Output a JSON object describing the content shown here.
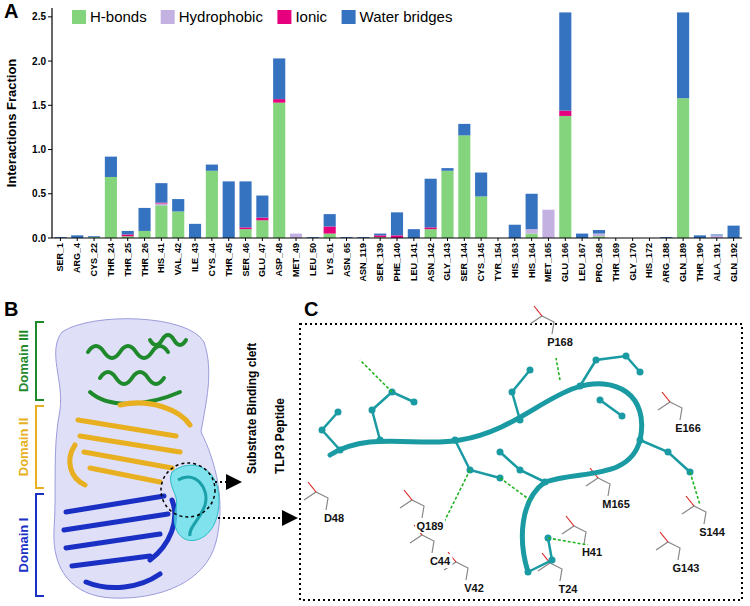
{
  "chart_data": {
    "type": "bar",
    "stacked": true,
    "grid": false,
    "legend": "upper left",
    "y_label": "Interactions Fraction",
    "categories": [
      "SER_1",
      "ARG_4",
      "CYS_22",
      "THR_24",
      "THR_25",
      "THR_26",
      "HIS_41",
      "VAL_42",
      "ILE_43",
      "CYS_44",
      "THR_45",
      "SER_46",
      "GLU_47",
      "ASP_48",
      "MET_49",
      "LEU_50",
      "LYS_61",
      "ASN_65",
      "ASN_119",
      "SER_139",
      "PHE_140",
      "LEU_141",
      "ASN_142",
      "GLY_143",
      "SER_144",
      "CYS_145",
      "TYR_154",
      "HIS_163",
      "HIS_164",
      "MET_165",
      "GLU_166",
      "LEU_167",
      "PRO_168",
      "THR_169",
      "GLY_170",
      "HIS_172",
      "ARG_188",
      "GLN_189",
      "THR_190",
      "ALA_191",
      "GLN_192"
    ],
    "series": [
      {
        "name": "H-bonds",
        "color": "#84d47e",
        "values": [
          0,
          0,
          0.01,
          0.69,
          0.02,
          0.08,
          0.37,
          0.3,
          0,
          0.76,
          0,
          0.1,
          0.2,
          1.53,
          0,
          0,
          0.05,
          0,
          0,
          0.01,
          0,
          0,
          0.1,
          0.76,
          1.16,
          0.47,
          0,
          0,
          0.05,
          0,
          1.38,
          0,
          0.02,
          0,
          0,
          0,
          0,
          1.58,
          0,
          0,
          0
        ]
      },
      {
        "name": "Hydrophobic",
        "color": "#c3b1e1",
        "values": [
          0,
          0,
          0,
          0,
          0,
          0,
          0.02,
          0,
          0,
          0,
          0,
          0,
          0,
          0,
          0.05,
          0,
          0,
          0,
          0,
          0,
          0,
          0,
          0,
          0,
          0,
          0,
          0,
          0,
          0.05,
          0.32,
          0,
          0,
          0.03,
          0,
          0,
          0,
          0,
          0,
          0,
          0.03,
          0
        ]
      },
      {
        "name": "Ionic",
        "color": "#e6007e",
        "values": [
          0,
          0,
          0,
          0,
          0.02,
          0,
          0.01,
          0,
          0,
          0,
          0,
          0.02,
          0.03,
          0.04,
          0,
          0,
          0.08,
          0,
          0,
          0.02,
          0.03,
          0,
          0.02,
          0,
          0,
          0,
          0,
          0,
          0,
          0,
          0.06,
          0,
          0,
          0,
          0,
          0,
          0,
          0,
          0,
          0,
          0
        ]
      },
      {
        "name": "Water bridges",
        "color": "#3572c0",
        "values": [
          0.01,
          0.03,
          0.01,
          0.23,
          0.04,
          0.26,
          0.22,
          0.14,
          0.16,
          0.07,
          0.64,
          0.52,
          0.25,
          0.46,
          0,
          0.01,
          0.14,
          0.01,
          0.01,
          0.02,
          0.26,
          0.1,
          0.55,
          0.03,
          0.13,
          0.27,
          0,
          0.15,
          0.4,
          0,
          1.11,
          0.05,
          0.04,
          0,
          0,
          0,
          0.01,
          0.97,
          0.03,
          0.01,
          0.14
        ]
      }
    ],
    "ylim": [
      0,
      2.6
    ],
    "yticks": [
      {
        "value": 0,
        "label": "0.0"
      },
      0.5,
      {
        "value": 1,
        "label": "1.0"
      },
      1.5,
      {
        "value": 2,
        "label": "2.0"
      },
      2.5
    ]
  },
  "diagram": {
    "panel_labels": [
      "A",
      "B",
      "C"
    ],
    "domains": [
      {
        "label": "Domain III",
        "color": "#1f8a2c"
      },
      {
        "label": "Domain II",
        "color": "#e8b020"
      },
      {
        "label": "Domain I",
        "color": "#1a2fc4"
      }
    ],
    "annotations": [
      "Substrate Binding cleft",
      "TLP3 Peptide"
    ],
    "residues": [
      "P168",
      "E166",
      "D48",
      "Q189",
      "M165",
      "S144",
      "G143",
      "C44",
      "H41",
      "V42",
      "T24"
    ]
  }
}
